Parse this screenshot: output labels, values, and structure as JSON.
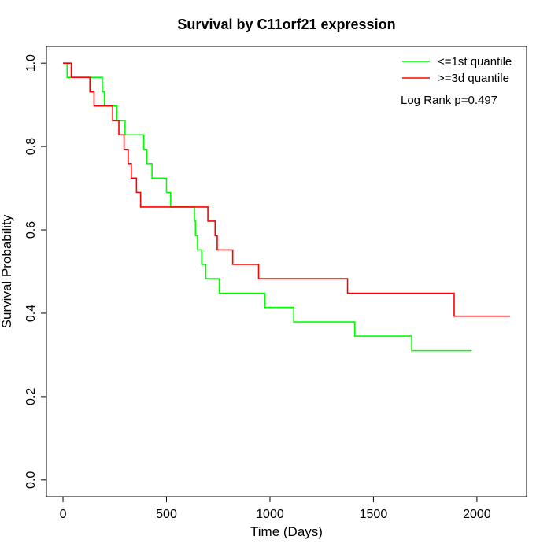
{
  "chart_data": {
    "type": "line",
    "title": "Survival by C11orf21 expression",
    "xlabel": "Time (Days)",
    "ylabel": "Survival Probability",
    "xlim": [
      -80,
      2240
    ],
    "ylim": [
      -0.04,
      1.04
    ],
    "x_ticks": [
      0,
      500,
      1000,
      1500,
      2000
    ],
    "x_tick_labels": [
      "0",
      "500",
      "1000",
      "1500",
      "2000"
    ],
    "y_ticks": [
      0.0,
      0.2,
      0.4,
      0.6,
      0.8,
      1.0
    ],
    "y_tick_labels": [
      "0.0",
      "0.2",
      "0.4",
      "0.6",
      "0.8",
      "1.0"
    ],
    "grid": false,
    "legend_position": "top-right",
    "annotation": "Log Rank p=0.497",
    "series": [
      {
        "name": "<=1st quantile",
        "color": "#00ff00",
        "step": [
          [
            0,
            1.0
          ],
          [
            20,
            1.0
          ],
          [
            20,
            0.966
          ],
          [
            190,
            0.966
          ],
          [
            190,
            0.931
          ],
          [
            200,
            0.931
          ],
          [
            200,
            0.897
          ],
          [
            260,
            0.897
          ],
          [
            260,
            0.862
          ],
          [
            300,
            0.862
          ],
          [
            300,
            0.828
          ],
          [
            390,
            0.828
          ],
          [
            390,
            0.793
          ],
          [
            405,
            0.793
          ],
          [
            405,
            0.759
          ],
          [
            430,
            0.759
          ],
          [
            430,
            0.724
          ],
          [
            500,
            0.724
          ],
          [
            500,
            0.69
          ],
          [
            520,
            0.69
          ],
          [
            520,
            0.655
          ],
          [
            635,
            0.655
          ],
          [
            635,
            0.621
          ],
          [
            640,
            0.621
          ],
          [
            640,
            0.586
          ],
          [
            650,
            0.586
          ],
          [
            650,
            0.552
          ],
          [
            670,
            0.552
          ],
          [
            670,
            0.517
          ],
          [
            690,
            0.517
          ],
          [
            690,
            0.483
          ],
          [
            755,
            0.483
          ],
          [
            755,
            0.448
          ],
          [
            975,
            0.448
          ],
          [
            975,
            0.414
          ],
          [
            1115,
            0.414
          ],
          [
            1115,
            0.379
          ],
          [
            1410,
            0.379
          ],
          [
            1410,
            0.345
          ],
          [
            1685,
            0.345
          ],
          [
            1685,
            0.31
          ],
          [
            1975,
            0.31
          ]
        ]
      },
      {
        "name": ">=3d quantile",
        "color": "#ff0000",
        "step": [
          [
            0,
            1.0
          ],
          [
            40,
            1.0
          ],
          [
            40,
            0.966
          ],
          [
            130,
            0.966
          ],
          [
            130,
            0.931
          ],
          [
            150,
            0.931
          ],
          [
            150,
            0.897
          ],
          [
            240,
            0.897
          ],
          [
            240,
            0.862
          ],
          [
            270,
            0.862
          ],
          [
            270,
            0.828
          ],
          [
            295,
            0.828
          ],
          [
            295,
            0.793
          ],
          [
            315,
            0.793
          ],
          [
            315,
            0.759
          ],
          [
            330,
            0.759
          ],
          [
            330,
            0.724
          ],
          [
            355,
            0.724
          ],
          [
            355,
            0.69
          ],
          [
            375,
            0.69
          ],
          [
            375,
            0.655
          ],
          [
            700,
            0.655
          ],
          [
            700,
            0.621
          ],
          [
            735,
            0.621
          ],
          [
            735,
            0.586
          ],
          [
            745,
            0.586
          ],
          [
            745,
            0.552
          ],
          [
            820,
            0.552
          ],
          [
            820,
            0.517
          ],
          [
            945,
            0.517
          ],
          [
            945,
            0.483
          ],
          [
            1375,
            0.483
          ],
          [
            1375,
            0.448
          ],
          [
            1890,
            0.448
          ],
          [
            1890,
            0.393
          ],
          [
            2160,
            0.393
          ]
        ]
      }
    ]
  }
}
